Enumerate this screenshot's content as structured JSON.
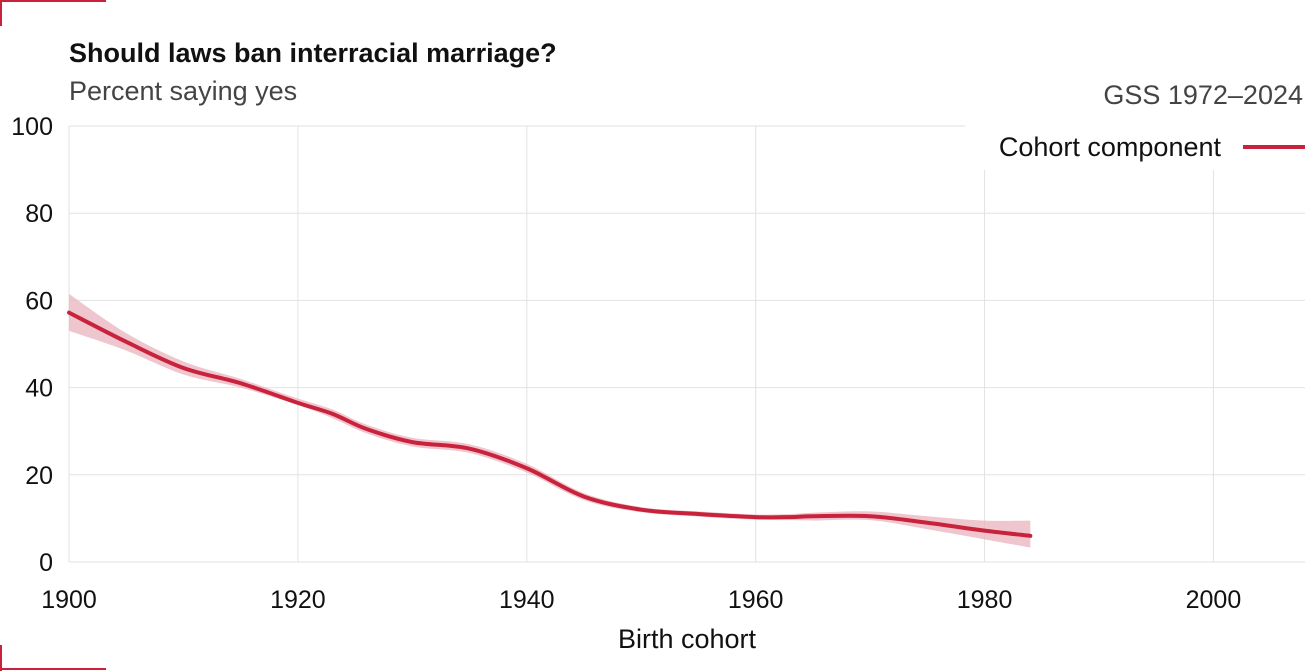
{
  "chart_data": {
    "type": "line",
    "title": "Should laws ban interracial marriage?",
    "subtitle": "Percent saying yes",
    "source": "GSS 1972–2024",
    "xlabel": "Birth cohort",
    "ylabel": "",
    "xlim": [
      1900,
      2008
    ],
    "ylim": [
      0,
      100
    ],
    "x_ticks": [
      1900,
      1920,
      1940,
      1960,
      1980,
      2000
    ],
    "y_ticks": [
      0,
      20,
      40,
      60,
      80,
      100
    ],
    "grid": true,
    "legend_position": "top-right",
    "series": [
      {
        "name": "Cohort component",
        "color": "#c8223c",
        "band_color": "#ebb3bd",
        "x": [
          1900,
          1905,
          1910,
          1915,
          1920,
          1923,
          1926,
          1930,
          1935,
          1940,
          1945,
          1950,
          1955,
          1960,
          1963,
          1965,
          1970,
          1975,
          1980,
          1984
        ],
        "y": [
          57.2,
          50.5,
          44.5,
          41,
          36.5,
          34,
          30.5,
          27.5,
          26,
          21.5,
          15,
          12,
          11,
          10.3,
          10.3,
          10.5,
          10.5,
          9,
          7.2,
          6
        ],
        "lower": [
          53,
          48.5,
          43,
          40,
          36,
          33,
          29.5,
          26.5,
          25,
          20.5,
          14.2,
          11.4,
          10.4,
          9.7,
          9.6,
          9.5,
          9.6,
          7.5,
          5.2,
          3.3
        ],
        "upper": [
          61.5,
          52.5,
          46,
          42,
          37.5,
          35,
          31.5,
          28.5,
          27,
          22.5,
          15.8,
          12.6,
          11.6,
          10.9,
          11,
          11.3,
          11.6,
          10.5,
          9.5,
          9.5
        ]
      }
    ]
  },
  "corner_color": "#c8223c"
}
